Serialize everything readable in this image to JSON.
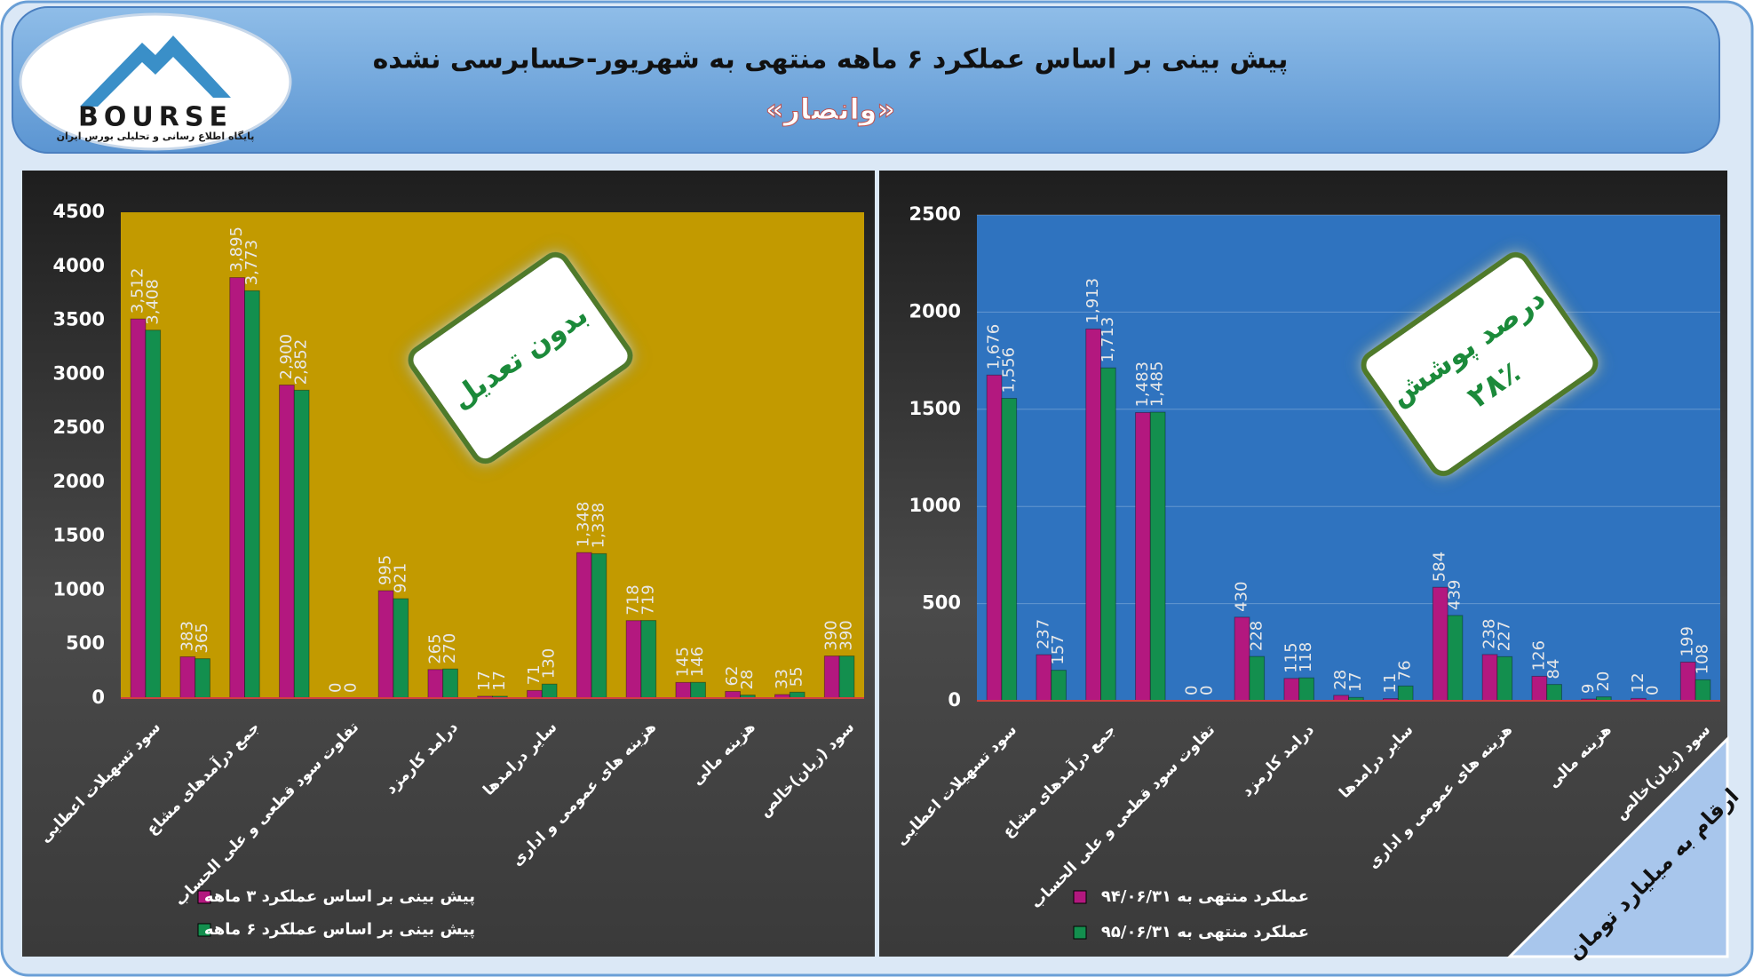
{
  "header": {
    "title": "پیش بینی بر اساس عملکرد ۶ ماهه منتهی به شهریور-حسابرسی نشده",
    "subtitle": "«وانصار»",
    "logo_text": "BOURSE",
    "logo_tagline": "پایگاه اطلاع رسانی و تحلیلی بورس ایران"
  },
  "badges": {
    "left": "بدون تعدیل",
    "right_title": "درصد پوشش",
    "right_value": "۲۸٪"
  },
  "unit_note": "ارقام به میلیارد تومان",
  "chart_data": [
    {
      "type": "bar",
      "categories": [
        "سود تسهیلات اعطایی",
        null,
        "جمع درآمدهای مشاع",
        null,
        "تفاوت سود قطعی و علی الحساب",
        null,
        "درامد کارمزد",
        null,
        "سایر درامدها",
        null,
        "هزینه های عمومی و اداری",
        null,
        "هزینه مالی",
        null,
        "سود (زیان)خالص"
      ],
      "series": [
        {
          "name": "پیش بینی بر اساس عملکرد ۳ ماهه",
          "color": "#b3187f",
          "values": [
            3512,
            383,
            3895,
            2900,
            0,
            995,
            265,
            17,
            71,
            1348,
            718,
            145,
            62,
            33,
            390
          ],
          "value_labels": [
            "3,512",
            "383",
            "3,895",
            "2,900",
            "0",
            "995",
            "265",
            "17",
            "71",
            "1,348",
            "718",
            "145",
            "62",
            "33",
            "390"
          ]
        },
        {
          "name": "پیش بینی بر اساس عملکرد ۶ ماهه",
          "color": "#138f4e",
          "values": [
            3408,
            365,
            3773,
            2852,
            0,
            921,
            270,
            17,
            130,
            1338,
            719,
            146,
            28,
            55,
            390
          ],
          "value_labels": [
            "3,408",
            "365",
            "3,773",
            "2,852",
            "0",
            "921",
            "270",
            "17",
            "130",
            "1,338",
            "719",
            "146",
            "28",
            "55",
            "390"
          ]
        }
      ],
      "ylim": [
        0,
        4500
      ],
      "yticks": [
        0,
        500,
        1000,
        1500,
        2000,
        2500,
        3000,
        3500,
        4000,
        4500
      ],
      "grid": false,
      "plot_color": "#c29a00"
    },
    {
      "type": "bar",
      "categories": [
        "سود تسهیلات اعطایی",
        null,
        "جمع درآمدهای مشاع",
        null,
        "تفاوت سود قطعی و علی الحساب",
        null,
        "درامد کارمزد",
        null,
        "سایر درامدها",
        null,
        "هزینه های عمومی و اداری",
        null,
        "هزینه مالی",
        null,
        "سود (زیان)خالص"
      ],
      "series": [
        {
          "name": "عملکرد منتهی به ۹۴/۰۶/۳۱",
          "color": "#b3187f",
          "values": [
            1676,
            237,
            1913,
            1483,
            0,
            430,
            115,
            28,
            11,
            584,
            238,
            126,
            9,
            12,
            199
          ],
          "value_labels": [
            "1,676",
            "237",
            "1,913",
            "1,483",
            "0",
            "430",
            "115",
            "28",
            "11",
            "584",
            "238",
            "126",
            "9",
            "12",
            "199"
          ]
        },
        {
          "name": "عملکرد منتهی به ۹۵/۰۶/۳۱",
          "color": "#138f4e",
          "values": [
            1556,
            157,
            1713,
            1485,
            0,
            228,
            118,
            17,
            76,
            439,
            227,
            84,
            20,
            0,
            108
          ],
          "value_labels": [
            "1,556",
            "157",
            "1,713",
            "1,485",
            "0",
            "228",
            "118",
            "17",
            "76",
            "439",
            "227",
            "84",
            "20",
            "0",
            "108"
          ]
        }
      ],
      "ylim": [
        0,
        2500
      ],
      "yticks": [
        0,
        500,
        1000,
        1500,
        2000,
        2500
      ],
      "grid": true,
      "plot_color": "#2f73bf"
    }
  ]
}
